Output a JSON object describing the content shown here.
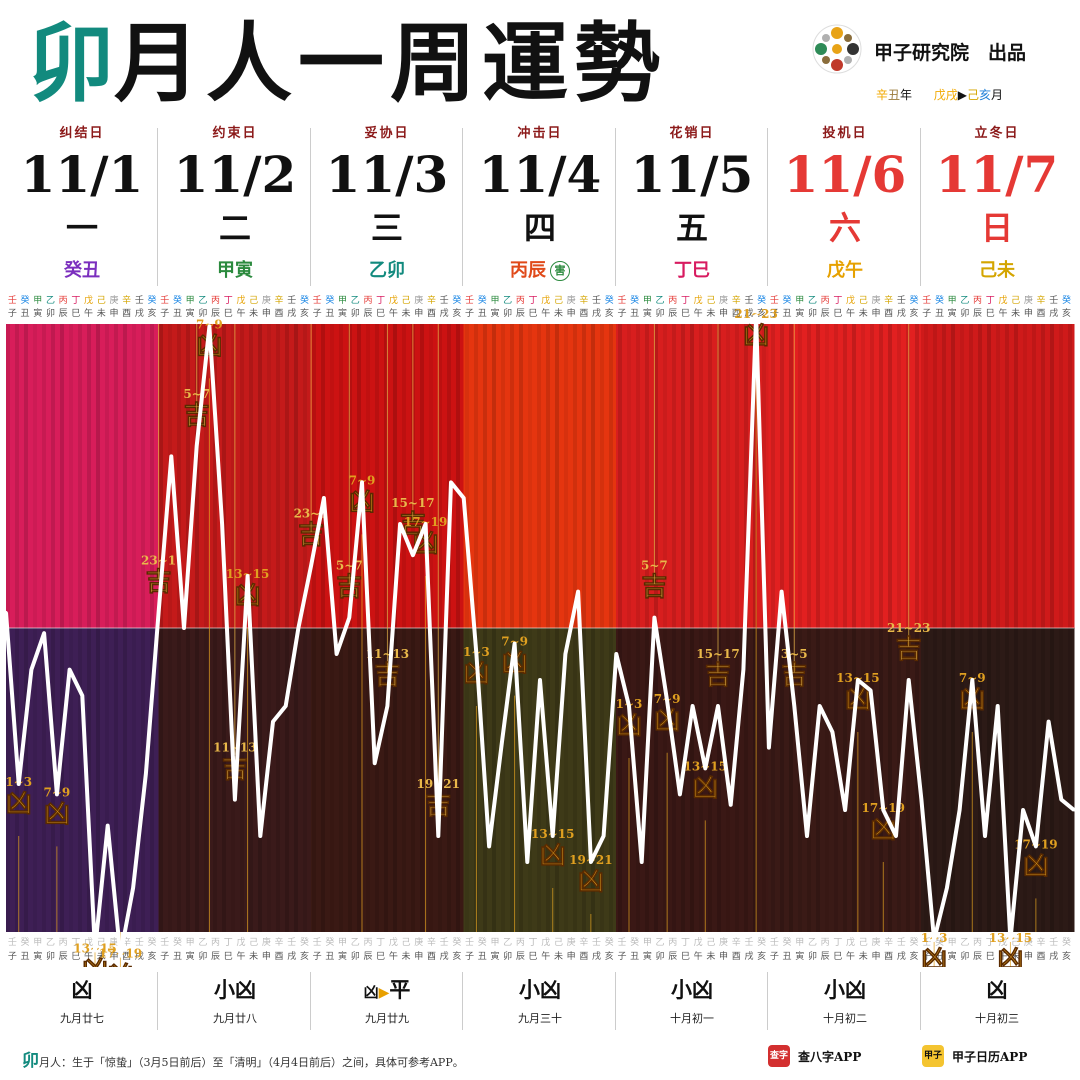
{
  "title": {
    "highlight": "卯",
    "rest": "月人一周運勢"
  },
  "brand": {
    "name": "甲子研究院　出品"
  },
  "period": {
    "year_gz1": "辛",
    "year_gz2": "丑",
    "year_unit": "年",
    "month_from1": "戊",
    "month_from2": "戌",
    "arrow": "▶",
    "month_to1": "己",
    "month_to2": "亥",
    "month_unit": "月"
  },
  "days": [
    {
      "label": "纠结日",
      "date": "11/1",
      "weekday": "一",
      "ganzhi": "癸丑",
      "date_color": "#111111",
      "gz_color": "#7b2fbe",
      "low_label": "凶",
      "lunar": "九月廿七"
    },
    {
      "label": "约束日",
      "date": "11/2",
      "weekday": "二",
      "ganzhi": "甲寅",
      "date_color": "#111111",
      "gz_color": "#2b8a3e",
      "low_label": "小凶",
      "lunar": "九月廿八"
    },
    {
      "label": "妥协日",
      "date": "11/3",
      "weekday": "三",
      "ganzhi": "乙卯",
      "date_color": "#111111",
      "gz_color": "#128a7e",
      "low_label": "平",
      "lunar": "九月廿九"
    },
    {
      "label": "冲击日",
      "date": "11/4",
      "weekday": "四",
      "ganzhi": "丙辰",
      "date_color": "#111111",
      "gz_color": "#e04a1a",
      "badge": "害",
      "low_label": "小凶",
      "lunar": "九月三十"
    },
    {
      "label": "花销日",
      "date": "11/5",
      "weekday": "五",
      "ganzhi": "丁巳",
      "date_color": "#111111",
      "gz_color": "#d81b60",
      "low_label": "小凶",
      "lunar": "十月初一"
    },
    {
      "label": "投机日",
      "date": "11/6",
      "weekday": "六",
      "ganzhi": "戊午",
      "date_color": "#e53935",
      "gz_color": "#e6a100",
      "low_label": "小凶",
      "lunar": "十月初二"
    },
    {
      "label": "立冬日",
      "date": "11/7",
      "weekday": "日",
      "ganzhi": "己未",
      "date_color": "#e53935",
      "gz_color": "#d4a500",
      "low_label": "凶",
      "lunar": "十月初三"
    }
  ],
  "level_prefix_day3": "凶",
  "level_arrow": "▶",
  "hour_stems": [
    "壬",
    "癸",
    "甲",
    "乙",
    "丙",
    "丁",
    "戊",
    "己",
    "庚",
    "辛",
    "壬",
    "癸"
  ],
  "hour_branches": [
    "子",
    "丑",
    "寅",
    "卯",
    "辰",
    "巳",
    "午",
    "未",
    "申",
    "酉",
    "戌",
    "亥"
  ],
  "colors": {
    "accent": "#128a7e",
    "good": "#e9b84a",
    "bad": "#e0a020",
    "curve": "#ffffff"
  },
  "chart_data": {
    "type": "line",
    "xlabel": "",
    "ylabel": "",
    "ylim": [
      -100,
      100
    ],
    "x": [
      0,
      1,
      2,
      3,
      4,
      5,
      6,
      7,
      8,
      9,
      10,
      11,
      12,
      13,
      14,
      15,
      16,
      17,
      18,
      19,
      20,
      21,
      22,
      23,
      24,
      25,
      26,
      27,
      28,
      29,
      30,
      31,
      32,
      33,
      34,
      35,
      36,
      37,
      38,
      39,
      40,
      41,
      42,
      43,
      44,
      45,
      46,
      47,
      48,
      49,
      50,
      51,
      52,
      53,
      54,
      55,
      56,
      57,
      58,
      59,
      60,
      61,
      62,
      63,
      64,
      65,
      66,
      67,
      68,
      69,
      70,
      71,
      72,
      73,
      74,
      75,
      76,
      77,
      78,
      79,
      80,
      81,
      82,
      83,
      84
    ],
    "series": [
      {
        "values": [
          3,
          -30,
          -8,
          -1,
          -32,
          -8,
          -13,
          -62,
          -38,
          -63,
          -50,
          -28,
          3,
          33,
          0,
          35,
          58,
          20,
          -33,
          10,
          -40,
          -18,
          -15,
          0,
          12,
          25,
          -5,
          2,
          28,
          -26,
          -15,
          20,
          14,
          20,
          -40,
          28,
          25,
          -5,
          -42,
          -22,
          -3,
          -45,
          -10,
          -40,
          -5,
          7,
          -45,
          -40,
          -5,
          -15,
          -45,
          2,
          -14,
          -32,
          -15,
          -27,
          -15,
          -34,
          -8,
          60,
          -23,
          7,
          -15,
          -40,
          -15,
          -20,
          -35,
          -10,
          -12,
          -35,
          -40,
          -10,
          -33,
          -60,
          -50,
          -35,
          -10,
          -40,
          -15,
          -60,
          -35,
          -42,
          -18,
          -33,
          -35
        ]
      }
    ],
    "annotations": [
      {
        "day": "11/1",
        "hour": "1~3",
        "type": "凶"
      },
      {
        "day": "11/1",
        "hour": "7~9",
        "type": "凶"
      },
      {
        "day": "11/1",
        "hour": "13~15",
        "type": "凶"
      },
      {
        "day": "11/1",
        "hour": "17~19",
        "type": "凶"
      },
      {
        "day": "11/2",
        "hour": "23~1",
        "type": "吉"
      },
      {
        "day": "11/2",
        "hour": "5~7",
        "type": "吉"
      },
      {
        "day": "11/2",
        "hour": "7~9",
        "type": "凶"
      },
      {
        "day": "11/2",
        "hour": "11~13",
        "type": "吉"
      },
      {
        "day": "11/2",
        "hour": "13~15",
        "type": "凶"
      },
      {
        "day": "11/3",
        "hour": "23~1",
        "type": "吉"
      },
      {
        "day": "11/3",
        "hour": "5~7",
        "type": "吉"
      },
      {
        "day": "11/3",
        "hour": "7~9",
        "type": "凶"
      },
      {
        "day": "11/3",
        "hour": "11~13",
        "type": "吉"
      },
      {
        "day": "11/3",
        "hour": "15~17",
        "type": "吉"
      },
      {
        "day": "11/3",
        "hour": "17~19",
        "type": "凶"
      },
      {
        "day": "11/3",
        "hour": "19~21",
        "type": "吉"
      },
      {
        "day": "11/4",
        "hour": "1~3",
        "type": "凶"
      },
      {
        "day": "11/4",
        "hour": "7~9",
        "type": "凶"
      },
      {
        "day": "11/4",
        "hour": "13~15",
        "type": "凶"
      },
      {
        "day": "11/4",
        "hour": "19~21",
        "type": "凶"
      },
      {
        "day": "11/5",
        "hour": "1~3",
        "type": "凶"
      },
      {
        "day": "11/5",
        "hour": "5~7",
        "type": "吉"
      },
      {
        "day": "11/5",
        "hour": "7~9",
        "type": "凶"
      },
      {
        "day": "11/5",
        "hour": "13~15",
        "type": "凶"
      },
      {
        "day": "11/5",
        "hour": "15~17",
        "type": "吉"
      },
      {
        "day": "11/5",
        "hour": "21~23",
        "type": "凶"
      },
      {
        "day": "11/6",
        "hour": "3~5",
        "type": "吉"
      },
      {
        "day": "11/6",
        "hour": "13~15",
        "type": "凶"
      },
      {
        "day": "11/6",
        "hour": "17~19",
        "type": "凶"
      },
      {
        "day": "11/6",
        "hour": "21~23",
        "type": "吉"
      },
      {
        "day": "11/7",
        "hour": "1~3",
        "type": "凶"
      },
      {
        "day": "11/7",
        "hour": "7~9",
        "type": "凶"
      },
      {
        "day": "11/7",
        "hour": "13~15",
        "type": "凶"
      },
      {
        "day": "11/7",
        "hour": "17~19",
        "type": "凶"
      }
    ]
  },
  "footnote": {
    "highlight": "卯",
    "text": "月人：生于「惊蛰」（3月5日前后）至「清明」（4月4日前后）之间，具体可参考APP。"
  },
  "apps": [
    {
      "name": "查八字APP",
      "icon": "bazi-app-icon",
      "icon_text": "查字",
      "icon_color": "#d32f2f"
    },
    {
      "name": "甲子日历APP",
      "icon": "calendar-app-icon",
      "icon_text": "甲子",
      "icon_color": "#f4c430"
    }
  ]
}
